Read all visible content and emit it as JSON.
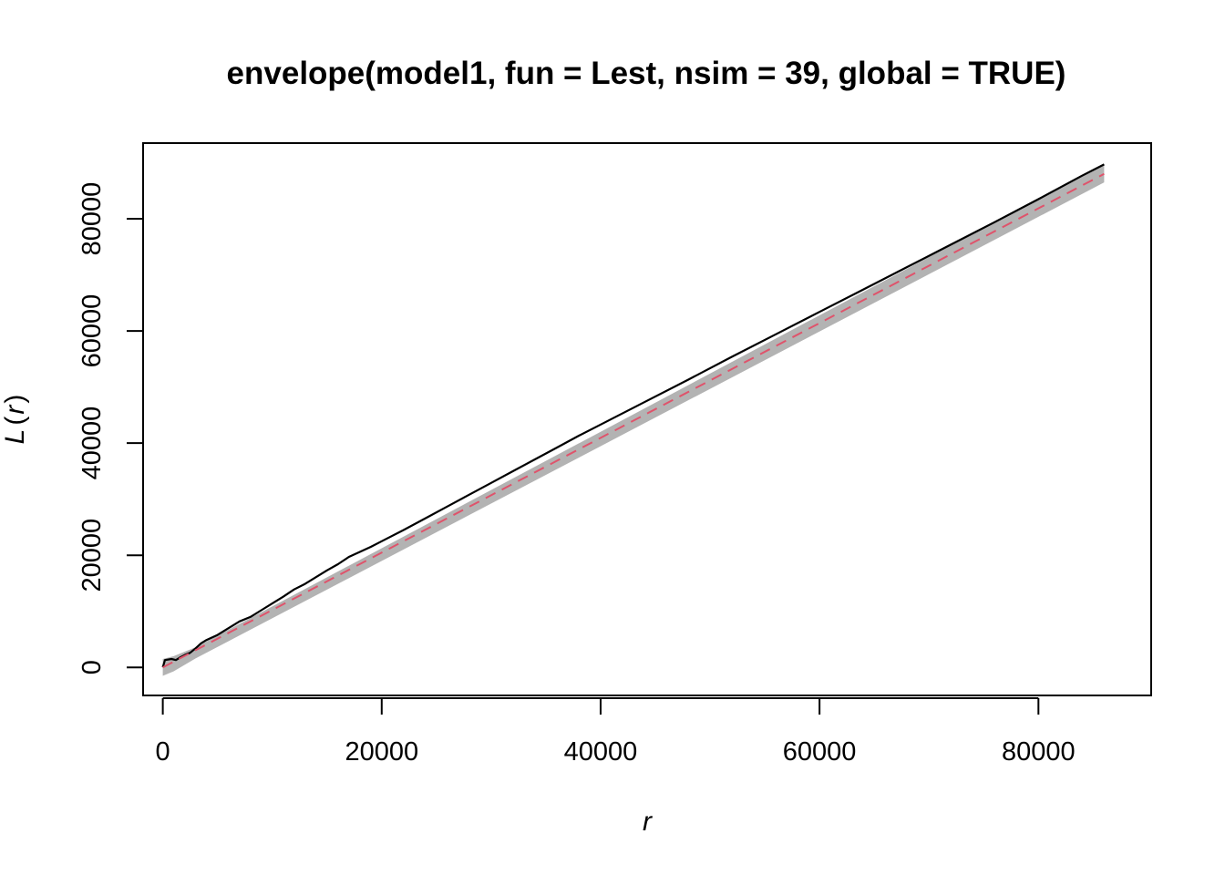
{
  "chart_data": {
    "type": "line",
    "title": "envelope(model1, fun = Lest, nsim = 39, global = TRUE)",
    "xlabel": "r",
    "ylabel": "L(r)",
    "ylabel_main": "L",
    "ylabel_paren_open": "(",
    "ylabel_var": "r",
    "ylabel_paren_close": ")",
    "xlim": [
      -1800,
      90300
    ],
    "ylim": [
      -5000,
      93500
    ],
    "x_ticks": [
      0,
      20000,
      40000,
      60000,
      80000
    ],
    "y_ticks": [
      0,
      20000,
      40000,
      60000,
      80000
    ],
    "x_tick_labels": [
      "0",
      "20000",
      "40000",
      "60000",
      "80000"
    ],
    "y_tick_labels": [
      "0",
      "20000",
      "40000",
      "60000",
      "80000"
    ],
    "grid": false,
    "legend": "none",
    "envelope": {
      "name": "",
      "color": "#b3b3b3",
      "x": [
        0,
        1000,
        3000,
        86000
      ],
      "lo": [
        -1500,
        -700,
        1600,
        86500
      ],
      "hi": [
        1500,
        2000,
        3600,
        89800
      ]
    },
    "series": [
      {
        "name": "",
        "style": "solid",
        "color": "#000000",
        "x": [
          0,
          200,
          800,
          1200,
          1600,
          2000,
          2500,
          3000,
          3500,
          4000,
          5000,
          6000,
          7000,
          8000,
          9000,
          10000,
          11000,
          12000,
          13000,
          14000,
          15000,
          16000,
          17000,
          18000,
          19000,
          20000,
          22000,
          24000,
          26000,
          28000,
          30000,
          32000,
          34000,
          36000,
          38000,
          40000,
          44000,
          48000,
          52000,
          56000,
          60000,
          64000,
          68000,
          72000,
          76000,
          80000,
          84000,
          86000
        ],
        "y": [
          0,
          1300,
          1500,
          1300,
          1800,
          2200,
          2600,
          3400,
          4300,
          4900,
          5800,
          7000,
          8200,
          9000,
          10200,
          11400,
          12600,
          13900,
          14900,
          16100,
          17300,
          18400,
          19700,
          20600,
          21500,
          22500,
          24500,
          26600,
          28700,
          30800,
          32900,
          35000,
          37100,
          39200,
          41300,
          43300,
          47300,
          51300,
          55400,
          59400,
          63400,
          67400,
          71400,
          75400,
          79400,
          83500,
          87700,
          89700
        ]
      },
      {
        "name": "",
        "style": "dashed",
        "color": "#df536b",
        "x": [
          0,
          86000
        ],
        "y": [
          0,
          88000
        ]
      }
    ]
  }
}
